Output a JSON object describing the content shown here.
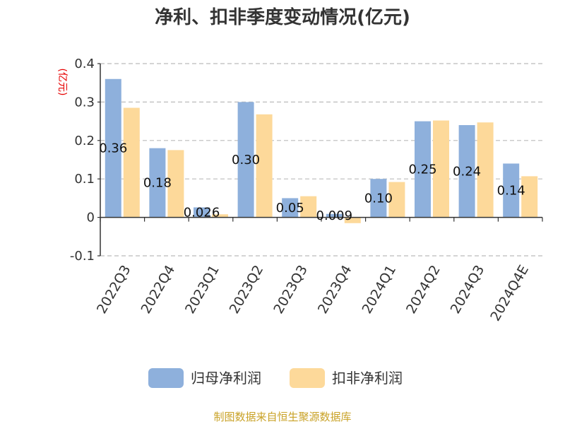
{
  "source_text": "制图数据来自恒生聚源数据库",
  "chart_data": {
    "type": "bar",
    "title": "净利、扣非季度变动情况(亿元)",
    "ylabel": "(亿元)",
    "xlabel": "",
    "categories": [
      "2022Q3",
      "2022Q4",
      "2023Q1",
      "2023Q2",
      "2023Q3",
      "2023Q4",
      "2024Q1",
      "2024Q2",
      "2024Q3",
      "2024Q4E"
    ],
    "series": [
      {
        "name": "归母净利润",
        "color": "#8eb0dc",
        "values": [
          0.36,
          0.18,
          0.026,
          0.3,
          0.05,
          0.009,
          0.1,
          0.25,
          0.24,
          0.14
        ],
        "labels": [
          "0.36",
          "0.18",
          "0.026",
          "0.30",
          "0.05",
          "0.009",
          "0.10",
          "0.25",
          "0.24",
          "0.14"
        ]
      },
      {
        "name": "扣非净利润",
        "color": "#fdd99a",
        "values": [
          0.285,
          0.175,
          0.008,
          0.268,
          0.055,
          -0.015,
          0.092,
          0.252,
          0.247,
          0.107
        ]
      }
    ],
    "ylim": [
      -0.1,
      0.4
    ],
    "yticks": [
      {
        "value": 0.4,
        "label": "0.4"
      },
      {
        "value": 0.3,
        "label": "0.3"
      },
      {
        "value": 0.2,
        "label": "0.2"
      },
      {
        "value": 0.1,
        "label": "0.1"
      },
      {
        "value": 0,
        "label": "0"
      },
      {
        "value": -0.1,
        "label": "-0.1"
      }
    ],
    "grid": true,
    "legend_position": "bottom"
  }
}
